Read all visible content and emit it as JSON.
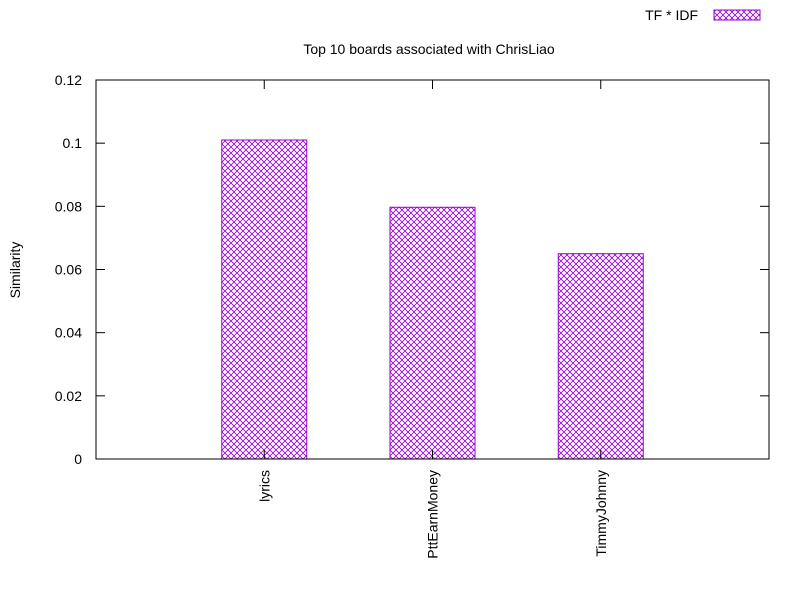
{
  "chart_data": {
    "type": "bar",
    "title": "Top 10 boards associated with ChrisLiao",
    "xlabel": "",
    "ylabel": "Similarity",
    "categories": [
      "lyrics",
      "PttEarnMoney",
      "TimmyJohnny"
    ],
    "series": [
      {
        "name": "TF * IDF",
        "values": [
          0.101,
          0.0797,
          0.065
        ],
        "color": "#9400d3",
        "pattern": "crosshatch"
      }
    ],
    "ylim": [
      0,
      0.12
    ],
    "yticks": [
      "0",
      "0.02",
      "0.04",
      "0.06",
      "0.08",
      "0.1",
      "0.12"
    ],
    "grid": false,
    "legend_position": "top-right"
  }
}
